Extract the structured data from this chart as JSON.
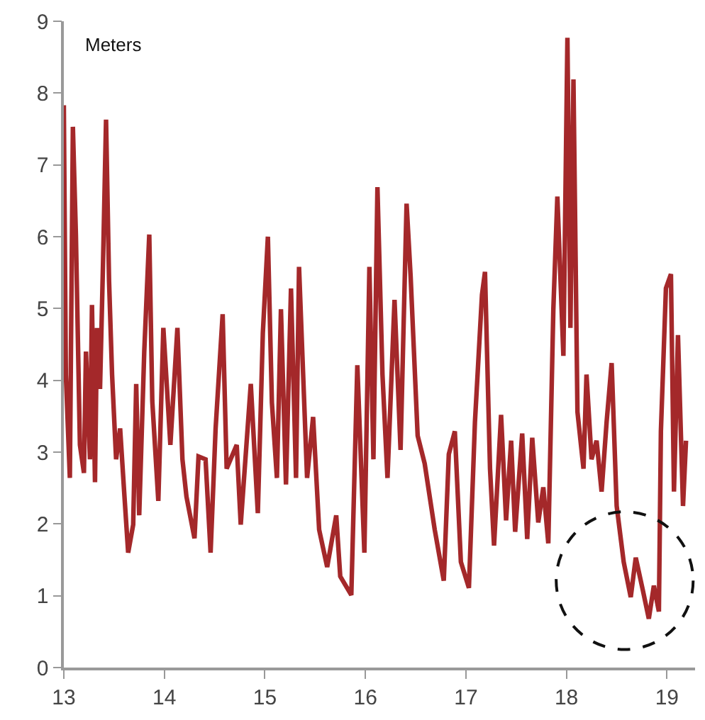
{
  "chart_data": {
    "type": "line",
    "ylabel": "Meters",
    "xlim": [
      13,
      19.28
    ],
    "ylim": [
      0,
      9
    ],
    "xticks": [
      13,
      14,
      15,
      16,
      17,
      18,
      19
    ],
    "yticks": [
      0,
      1,
      2,
      3,
      4,
      5,
      6,
      7,
      8,
      9
    ],
    "marker": "none",
    "line_style": "solid",
    "x": [
      13.0,
      13.02,
      13.06,
      13.09,
      13.12,
      13.16,
      13.2,
      13.22,
      13.26,
      13.28,
      13.31,
      13.33,
      13.36,
      13.39,
      13.42,
      13.45,
      13.48,
      13.52,
      13.56,
      13.6,
      13.64,
      13.69,
      13.72,
      13.75,
      13.8,
      13.85,
      13.88,
      13.94,
      13.99,
      14.06,
      14.13,
      14.18,
      14.22,
      14.3,
      14.34,
      14.41,
      14.46,
      14.51,
      14.58,
      14.62,
      14.72,
      14.76,
      14.86,
      14.93,
      14.98,
      15.03,
      15.07,
      15.12,
      15.16,
      15.21,
      15.26,
      15.31,
      15.34,
      15.42,
      15.48,
      15.54,
      15.62,
      15.71,
      15.75,
      15.86,
      15.92,
      15.99,
      16.04,
      16.08,
      16.12,
      16.17,
      16.22,
      16.29,
      16.35,
      16.41,
      16.45,
      16.52,
      16.59,
      16.69,
      16.78,
      16.83,
      16.89,
      16.95,
      17.03,
      17.09,
      17.16,
      17.19,
      17.24,
      17.28,
      17.35,
      17.4,
      17.45,
      17.49,
      17.56,
      17.61,
      17.66,
      17.72,
      17.77,
      17.82,
      17.87,
      17.91,
      17.97,
      18.01,
      18.04,
      18.07,
      18.11,
      18.17,
      18.2,
      18.25,
      18.3,
      18.35,
      18.4,
      18.45,
      18.5,
      18.57,
      18.64,
      18.69,
      18.76,
      18.82,
      18.87,
      18.92,
      18.94,
      18.99,
      19.04,
      19.07,
      19.11,
      19.16,
      19.19
    ],
    "series": [
      {
        "color": "#a4282a",
        "values": [
          7.83,
          4.08,
          2.64,
          7.53,
          6.03,
          3.1,
          2.71,
          4.4,
          2.9,
          5.05,
          2.58,
          4.73,
          3.88,
          5.64,
          7.63,
          5.38,
          4.08,
          2.9,
          3.33,
          2.45,
          1.6,
          1.99,
          3.95,
          2.12,
          4.4,
          6.03,
          3.71,
          2.32,
          4.73,
          3.1,
          4.73,
          2.9,
          2.38,
          1.8,
          2.94,
          2.9,
          1.6,
          3.33,
          4.92,
          2.77,
          3.1,
          1.99,
          3.95,
          2.15,
          4.66,
          6.0,
          3.69,
          2.64,
          4.99,
          2.55,
          5.28,
          2.64,
          5.58,
          2.64,
          3.49,
          1.92,
          1.4,
          2.12,
          1.27,
          1.01,
          4.21,
          1.6,
          5.58,
          2.9,
          6.69,
          4.08,
          2.64,
          5.12,
          3.03,
          6.46,
          5.45,
          3.23,
          2.84,
          1.92,
          1.21,
          2.97,
          3.29,
          1.47,
          1.11,
          3.42,
          5.19,
          5.51,
          2.77,
          1.7,
          3.52,
          2.05,
          3.16,
          1.89,
          3.26,
          1.79,
          3.2,
          2.02,
          2.51,
          1.73,
          4.99,
          6.56,
          4.34,
          8.77,
          4.73,
          8.19,
          3.56,
          2.77,
          4.08,
          2.9,
          3.16,
          2.45,
          3.42,
          4.24,
          2.25,
          1.47,
          0.98,
          1.53,
          1.08,
          0.68,
          1.14,
          0.78,
          3.29,
          5.28,
          5.48,
          2.45,
          4.63,
          2.25,
          3.16
        ]
      }
    ]
  }
}
